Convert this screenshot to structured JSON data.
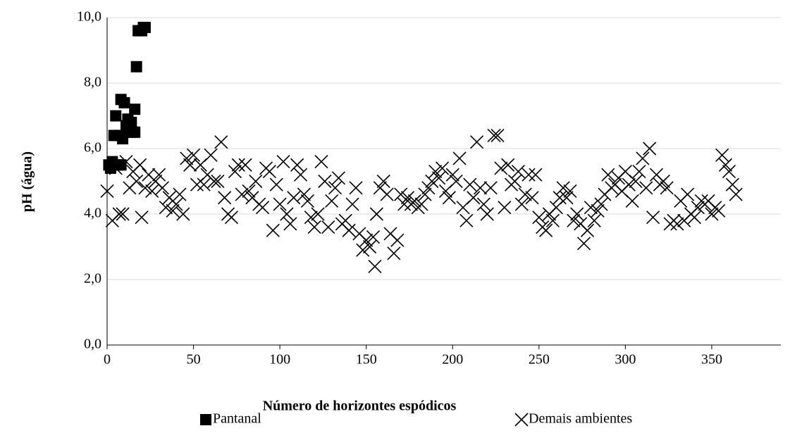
{
  "chart_data": {
    "type": "scatter",
    "xlabel": "Número de horizontes espódicos",
    "ylabel": "pH (água)",
    "xlim": [
      0,
      390
    ],
    "xticks": [
      0,
      50,
      100,
      150,
      200,
      250,
      300,
      350
    ],
    "ylim": [
      0,
      10
    ],
    "yticks": [
      {
        "value": 0,
        "label": "0,0"
      },
      {
        "value": 2,
        "label": "2,0"
      },
      {
        "value": 4,
        "label": "4,0"
      },
      {
        "value": 6,
        "label": "6,0"
      },
      {
        "value": 8,
        "label": "8,0"
      },
      {
        "value": 10,
        "label": "10,0"
      }
    ],
    "grid": true,
    "legend": "bottom",
    "series": [
      {
        "name": "Pantanal",
        "color": "#000000",
        "marker": "square",
        "x": [
          1,
          2,
          3,
          4,
          5,
          6,
          7,
          8,
          9,
          10,
          11,
          12,
          13,
          14,
          15,
          16,
          17,
          18,
          20,
          21,
          22,
          5,
          8,
          12,
          16
        ],
        "values": [
          5.5,
          5.4,
          5.6,
          6.4,
          7.0,
          5.5,
          6.4,
          7.5,
          6.3,
          7.4,
          6.7,
          6.9,
          6.6,
          6.8,
          6.5,
          7.2,
          8.5,
          9.6,
          9.6,
          9.7,
          9.7,
          5.5,
          5.5,
          6.5,
          6.5
        ]
      },
      {
        "name": "Demais ambientes",
        "color": "#000000",
        "marker": "x",
        "x": [
          0,
          3,
          5,
          7,
          9,
          11,
          13,
          15,
          17,
          19,
          20,
          22,
          24,
          26,
          28,
          30,
          32,
          34,
          36,
          38,
          40,
          42,
          44,
          46,
          48,
          50,
          52,
          54,
          56,
          58,
          60,
          62,
          64,
          66,
          68,
          70,
          72,
          74,
          76,
          78,
          80,
          82,
          84,
          86,
          88,
          90,
          92,
          94,
          96,
          98,
          100,
          102,
          104,
          106,
          108,
          110,
          112,
          114,
          116,
          118,
          120,
          122,
          124,
          126,
          128,
          130,
          132,
          134,
          136,
          138,
          140,
          142,
          144,
          146,
          148,
          150,
          152,
          154,
          155,
          156,
          158,
          160,
          162,
          164,
          166,
          168,
          170,
          172,
          174,
          176,
          178,
          180,
          182,
          184,
          186,
          188,
          190,
          192,
          194,
          196,
          198,
          200,
          202,
          204,
          206,
          208,
          210,
          212,
          214,
          216,
          218,
          220,
          222,
          224,
          226,
          228,
          230,
          232,
          234,
          236,
          238,
          240,
          242,
          244,
          246,
          248,
          250,
          252,
          254,
          256,
          258,
          260,
          262,
          264,
          266,
          268,
          270,
          272,
          274,
          276,
          278,
          280,
          282,
          284,
          286,
          288,
          290,
          292,
          294,
          296,
          298,
          300,
          302,
          304,
          306,
          308,
          310,
          312,
          314,
          316,
          318,
          320,
          322,
          324,
          326,
          328,
          330,
          332,
          334,
          336,
          338,
          340,
          342,
          344,
          346,
          348,
          350,
          352,
          354,
          356,
          358,
          360,
          362,
          364
        ],
        "values": [
          4.7,
          3.8,
          5.4,
          4.0,
          4.0,
          5.6,
          4.8,
          5.3,
          5.0,
          5.5,
          3.9,
          4.8,
          5.2,
          4.7,
          5.0,
          5.2,
          4.8,
          4.2,
          4.5,
          4.1,
          4.3,
          4.6,
          4.0,
          5.7,
          5.5,
          5.8,
          4.9,
          5.5,
          4.9,
          5.2,
          5.8,
          5.0,
          5.0,
          6.2,
          4.5,
          4.0,
          3.9,
          5.3,
          5.5,
          4.6,
          5.5,
          4.7,
          4.5,
          5.0,
          4.3,
          4.2,
          5.4,
          5.3,
          3.5,
          4.9,
          4.3,
          5.6,
          4.0,
          3.7,
          4.5,
          5.5,
          5.2,
          4.6,
          4.4,
          3.9,
          3.6,
          4.0,
          5.6,
          5.0,
          3.6,
          4.4,
          4.8,
          5.1,
          3.7,
          3.8,
          3.5,
          4.3,
          4.8,
          3.4,
          2.9,
          3.2,
          3.0,
          3.3,
          2.4,
          4.0,
          4.8,
          5.0,
          4.6,
          3.4,
          2.8,
          3.2,
          4.6,
          4.3,
          4.5,
          4.3,
          4.4,
          4.2,
          4.3,
          4.6,
          4.8,
          5.0,
          5.3,
          5.1,
          5.4,
          4.7,
          4.5,
          5.2,
          5.0,
          5.7,
          4.2,
          3.8,
          4.9,
          4.5,
          6.2,
          4.8,
          4.3,
          4.0,
          4.8,
          6.4,
          6.4,
          5.4,
          4.2,
          5.5,
          4.9,
          5.0,
          5.3,
          4.3,
          4.6,
          5.2,
          4.5,
          5.2,
          3.9,
          3.6,
          3.5,
          4.0,
          3.8,
          4.2,
          4.5,
          4.8,
          4.5,
          4.7,
          3.8,
          4.0,
          3.7,
          3.1,
          3.5,
          4.2,
          3.8,
          4.1,
          4.3,
          4.6,
          5.2,
          4.8,
          4.9,
          5.1,
          4.7,
          5.3,
          4.9,
          4.4,
          5.0,
          5.3,
          5.7,
          4.8,
          6.0,
          3.9,
          5.2,
          4.9,
          5.0,
          4.8,
          3.7,
          3.8,
          3.7,
          4.4,
          3.8,
          4.6,
          4.0,
          3.9,
          4.2,
          4.4,
          4.3,
          4.4,
          4.0,
          4.2,
          4.1,
          5.8,
          5.5,
          5.3,
          4.9,
          4.6
        ]
      }
    ]
  }
}
